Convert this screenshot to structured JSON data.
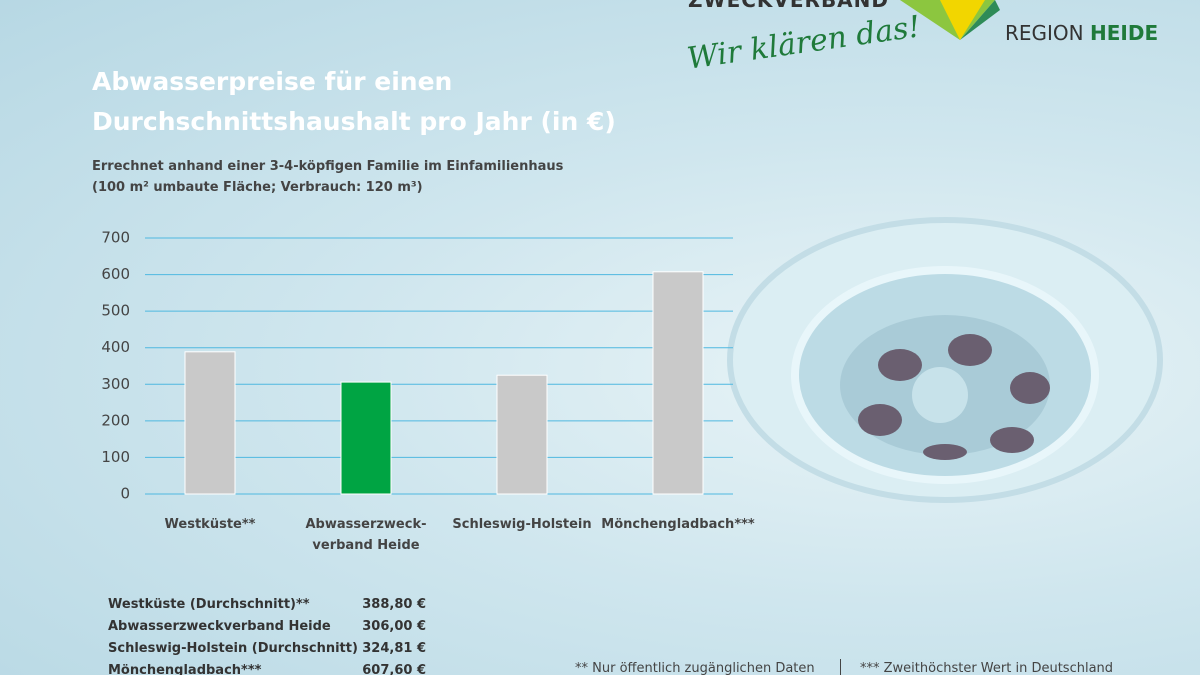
{
  "chart_data": {
    "type": "bar",
    "title": "Abwasserpreise für einen\nDurchschnittshaushalt pro Jahr (in €)",
    "subtitle": "Errechnet anhand einer 3-4-köpfigen Familie im Einfamilienhaus\n(100 m² umbaute Fläche; Verbrauch: 120 m³)",
    "categories": [
      "Westküste**",
      "Abwasserzweck-\nverband Heide",
      "Schleswig-Holstein",
      "Mönchengladbach***"
    ],
    "values": [
      388.8,
      306.0,
      324.81,
      607.6
    ],
    "value_labels": [
      "388,80 €",
      "306,00 €",
      "324,81 €",
      "607,60 €"
    ],
    "colors": [
      "#c9c9c9",
      "#00a443",
      "#c9c9c9",
      "#c9c9c9"
    ],
    "ylim": [
      0,
      700
    ],
    "yticks": [
      0,
      100,
      200,
      300,
      400,
      500,
      600,
      700
    ],
    "grid": true,
    "table_labels": [
      "Westküste (Durchschnitt)**",
      "Abwasserzweckverband Heide",
      "Schleswig-Holstein (Durchschnitt)",
      "Mönchengladbach***"
    ],
    "footnotes": [
      "** Nur öffentlich zugänglichen Daten",
      "*** Zweithöchster Wert in Deutschland"
    ]
  },
  "logo": {
    "top": "ZWECKVERBAND",
    "region": "REGION",
    "heide": "HEIDE",
    "slogan": "Wir klären das!"
  }
}
